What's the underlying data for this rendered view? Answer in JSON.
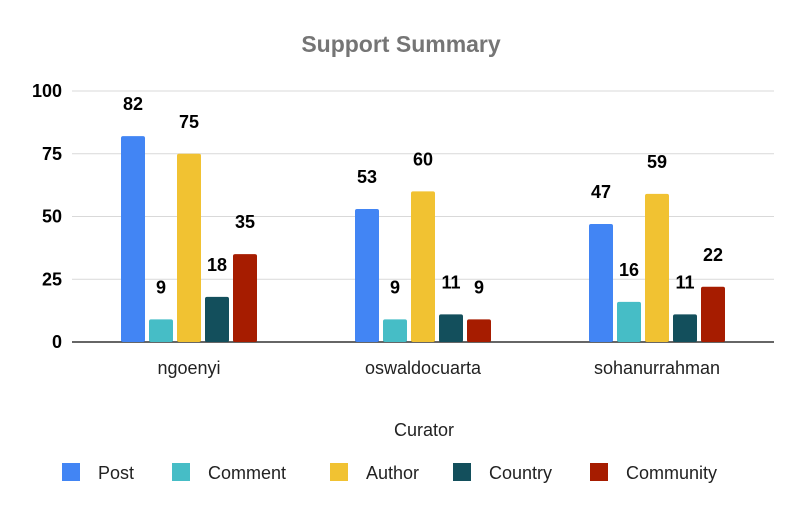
{
  "chart_data": {
    "type": "bar",
    "title": "Support Summary",
    "xlabel": "Curator",
    "ylabel": "",
    "categories": [
      "ngoenyi",
      "oswaldocuarta",
      "sohanurrahman"
    ],
    "series": [
      {
        "name": "Post",
        "color": "#4285f4",
        "values": [
          82,
          53,
          47
        ]
      },
      {
        "name": "Comment",
        "color": "#46bdc6",
        "values": [
          9,
          9,
          16
        ]
      },
      {
        "name": "Author",
        "color": "#f1c232",
        "values": [
          75,
          60,
          59
        ]
      },
      {
        "name": "Country",
        "color": "#134f5c",
        "values": [
          18,
          11,
          11
        ]
      },
      {
        "name": "Community",
        "color": "#a61c00",
        "values": [
          35,
          9,
          22
        ]
      }
    ],
    "ylim": [
      0,
      100
    ],
    "yticks": [
      0,
      25,
      50,
      75,
      100
    ],
    "grid": true,
    "legend": "bottom"
  }
}
